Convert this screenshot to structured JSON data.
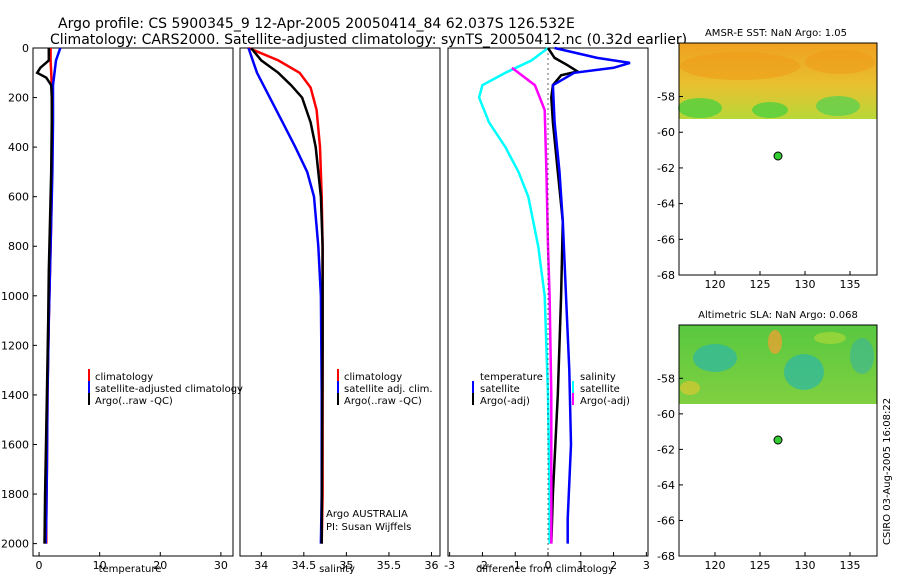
{
  "header": {
    "line1": "Argo profile: CS 5900345_9 12-Apr-2005 20050414_84 62.037S 126.532E",
    "line2": "Climatology: CARS2000. Satellite-adjusted climatology: synTS_20050412.nc (0.32d earlier)"
  },
  "side_stamp": "CSIRO 03-Aug-2005 16:08:22",
  "colors": {
    "climatology": "#ff0000",
    "satellite": "#0000ff",
    "argo": "#000000",
    "temperature_diff": "#00ffff",
    "salinity_diff_adj": "#ff00ff",
    "marker": "#33cc33"
  },
  "chart_data": [
    {
      "id": "temperature",
      "type": "line",
      "xlabel": "temperature",
      "xlim": [
        -1,
        32
      ],
      "ylim": [
        2050,
        0
      ],
      "y_ticks": [
        0,
        200,
        400,
        600,
        800,
        1000,
        1200,
        1400,
        1600,
        1800,
        2000
      ],
      "y_tick_labels": [
        "0",
        "200",
        "400",
        "600",
        "800",
        "1000",
        "1200",
        "1400",
        "1600",
        "1800",
        "2000"
      ],
      "x_ticks": [
        0,
        10,
        20,
        30
      ],
      "x_tick_labels": [
        "0",
        "10",
        "20",
        "30"
      ],
      "legend": [
        "climatology",
        "satellite-adjusted climatology",
        "Argo(..raw -QC)"
      ],
      "series": [
        {
          "name": "climatology",
          "color_key": "climatology",
          "x": [
            1.9,
            1.9,
            2.1,
            2.2,
            2.1,
            2.0,
            1.8,
            1.6,
            1.4,
            1.3,
            1.2,
            1.2
          ],
          "y": [
            0,
            50,
            150,
            300,
            500,
            700,
            900,
            1100,
            1400,
            1700,
            1900,
            2000
          ]
        },
        {
          "name": "satellite-adjusted climatology",
          "color_key": "satellite",
          "x": [
            3.5,
            2.8,
            2.3,
            2.3,
            2.2,
            2.0,
            1.8,
            1.6,
            1.4,
            1.3,
            1.2,
            1.1
          ],
          "y": [
            0,
            50,
            150,
            300,
            500,
            700,
            900,
            1100,
            1400,
            1700,
            1900,
            2000
          ]
        },
        {
          "name": "Argo(..raw -QC)",
          "color_key": "argo",
          "x": [
            1.6,
            1.6,
            0.2,
            -0.3,
            1.2,
            2.0,
            2.1,
            2.1,
            2.0,
            1.8,
            1.6,
            1.5,
            1.3,
            1.0,
            0.9
          ],
          "y": [
            0,
            50,
            80,
            100,
            120,
            150,
            200,
            300,
            500,
            700,
            900,
            1100,
            1400,
            1800,
            2000
          ]
        }
      ]
    },
    {
      "id": "salinity",
      "type": "line",
      "xlabel": "salinity",
      "xlim": [
        33.75,
        36.1
      ],
      "ylim": [
        2050,
        0
      ],
      "x_ticks": [
        34,
        34.5,
        35,
        35.5,
        36
      ],
      "x_tick_labels": [
        "34",
        "34.5",
        "35",
        "35.5",
        "36"
      ],
      "legend": [
        "climatology",
        "satellite adj. clim.",
        "Argo(..raw -QC)"
      ],
      "annotation": [
        "Argo AUSTRALIA",
        "PI: Susan Wijffels"
      ],
      "series": [
        {
          "name": "climatology",
          "color_key": "climatology",
          "x": [
            33.85,
            34.2,
            34.45,
            34.58,
            34.65,
            34.69,
            34.71,
            34.72,
            34.72,
            34.72,
            34.72,
            34.71
          ],
          "y": [
            0,
            50,
            100,
            160,
            250,
            400,
            600,
            800,
            1000,
            1400,
            1800,
            2000
          ]
        },
        {
          "name": "satellite adj. clim.",
          "color_key": "satellite",
          "x": [
            33.85,
            33.95,
            34.1,
            34.25,
            34.4,
            34.54,
            34.62,
            34.67,
            34.7,
            34.71,
            34.71,
            34.7
          ],
          "y": [
            0,
            100,
            200,
            300,
            400,
            500,
            600,
            800,
            1000,
            1400,
            1800,
            2000
          ]
        },
        {
          "name": "Argo(..raw -QC)",
          "color_key": "argo",
          "x": [
            33.88,
            34.0,
            34.2,
            34.35,
            34.48,
            34.58,
            34.64,
            34.7,
            34.72,
            34.72,
            34.71
          ],
          "y": [
            0,
            50,
            100,
            150,
            200,
            300,
            400,
            600,
            800,
            1200,
            2000
          ]
        }
      ]
    },
    {
      "id": "difference",
      "type": "line",
      "xlabel": "difference from climatology",
      "xlim": [
        -3.05,
        3.05
      ],
      "ylim": [
        2050,
        0
      ],
      "x_ticks": [
        -3,
        -2,
        -1,
        0,
        1,
        2,
        3
      ],
      "x_tick_labels": [
        "-3",
        "-2",
        "-1",
        "0",
        "1",
        "2",
        "3"
      ],
      "legend_left": [
        "temperature",
        "satellite",
        "Argo(-adj)"
      ],
      "legend_right": [
        "salinity",
        "satellite",
        "Argo(-adj)"
      ],
      "series": [
        {
          "name": "temperature satellite",
          "color_key": "temperature_diff",
          "x": [
            0,
            -0.5,
            -1.3,
            -2.0,
            -2.1,
            -1.8,
            -1.3,
            -0.9,
            -0.6,
            -0.3,
            -0.1,
            0.0,
            0.05,
            0.05
          ],
          "y": [
            0,
            50,
            100,
            150,
            200,
            300,
            400,
            500,
            600,
            800,
            1000,
            1400,
            1800,
            2000
          ]
        },
        {
          "name": "temperature Argo(-adj)",
          "color_key": "argo",
          "x": [
            0.0,
            0.2,
            0.6,
            0.9,
            0.4,
            0.15,
            0.1,
            0.15,
            0.3,
            0.45,
            0.4,
            0.3,
            0.15,
            0.1
          ],
          "y": [
            0,
            40,
            70,
            95,
            110,
            150,
            200,
            300,
            500,
            700,
            1000,
            1400,
            1800,
            2000
          ]
        },
        {
          "name": "salinity satellite",
          "color_key": "satellite",
          "x": [
            0.2,
            1.5,
            2.5,
            2.0,
            0.8,
            0.15,
            0.2,
            0.35,
            0.45,
            0.55,
            0.65,
            0.7,
            0.6,
            0.6
          ],
          "y": [
            0,
            40,
            60,
            80,
            100,
            150,
            300,
            500,
            700,
            1000,
            1300,
            1600,
            1900,
            2000
          ]
        },
        {
          "name": "salinity Argo(-adj)",
          "color_key": "salinity_diff_adj",
          "x": [
            -1.1,
            -0.9,
            -0.4,
            -0.1,
            -0.05,
            0.0,
            0.05,
            0.1,
            0.1,
            0.1
          ],
          "y": [
            80,
            100,
            150,
            250,
            500,
            800,
            1000,
            1400,
            1800,
            2000
          ]
        }
      ]
    },
    {
      "id": "sst_map",
      "type": "heatmap",
      "title": "AMSR-E SST: NaN Argo: 1.05",
      "xlim": [
        116,
        138
      ],
      "ylim": [
        -68,
        -55
      ],
      "x_ticks": [
        120,
        125,
        130,
        135
      ],
      "x_tick_labels": [
        "120",
        "125",
        "130",
        "135"
      ],
      "y_ticks": [
        -58,
        -60,
        -62,
        -64,
        -66,
        -68
      ],
      "y_tick_labels": [
        "-58",
        "-60",
        "-62",
        "-64",
        "-66",
        "-68"
      ],
      "data_ylim": [
        -60,
        -55
      ],
      "argo_position": {
        "lon": 126.5,
        "lat": -62.0
      }
    },
    {
      "id": "sla_map",
      "type": "heatmap",
      "title": "Altimetric SLA: NaN Argo: 0.068",
      "xlim": [
        116,
        138
      ],
      "ylim": [
        -68,
        -55
      ],
      "x_ticks": [
        120,
        125,
        130,
        135
      ],
      "x_tick_labels": [
        "120",
        "125",
        "130",
        "135"
      ],
      "y_ticks": [
        -58,
        -60,
        -62,
        -64,
        -66,
        -68
      ],
      "y_tick_labels": [
        "-58",
        "-60",
        "-62",
        "-64",
        "-66",
        "-68"
      ],
      "data_ylim": [
        -60,
        -55
      ],
      "argo_position": {
        "lon": 126.5,
        "lat": -62.0
      }
    }
  ]
}
